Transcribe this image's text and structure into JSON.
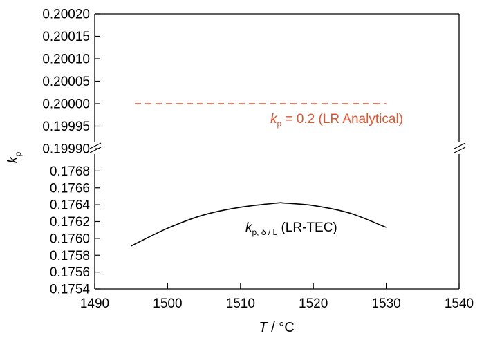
{
  "chart_data": {
    "type": "line",
    "broken_axis": true,
    "xlabel": {
      "italic": "T",
      "rest": " / °C"
    },
    "ylabel": {
      "italic": "k",
      "sub": "p"
    },
    "xlim": [
      1490,
      1540
    ],
    "x_ticks": [
      "1490",
      "1500",
      "1510",
      "1520",
      "1530",
      "1540"
    ],
    "upper_panel": {
      "ylim": [
        0.1999,
        0.2002
      ],
      "y_ticks": [
        "0.20020",
        "0.20015",
        "0.20010",
        "0.20005",
        "0.20000",
        "0.19995",
        "0.19990"
      ]
    },
    "lower_panel": {
      "ylim": [
        0.1754,
        0.177
      ],
      "y_ticks": [
        "0.1768",
        "0.1766",
        "0.1764",
        "0.1762",
        "0.1760",
        "0.1758",
        "0.1756",
        "0.1754"
      ]
    },
    "series": [
      {
        "name": "LR Analytical",
        "panel": "upper",
        "style": "dashed",
        "color": "#e8532d",
        "x": [
          1495.5,
          1530
        ],
        "y": [
          0.2,
          0.2
        ],
        "label": {
          "italic": "k",
          "sub": "p",
          "rest": " = 0.2 (LR Analytical)"
        }
      },
      {
        "name": "LR-TEC",
        "panel": "lower",
        "style": "solid",
        "color": "#000000",
        "x": [
          1495,
          1500,
          1505,
          1510,
          1515,
          1516,
          1520,
          1525,
          1530
        ],
        "y": [
          0.17591,
          0.17612,
          0.17628,
          0.17637,
          0.17642,
          0.17642,
          0.17639,
          0.1763,
          0.17613
        ],
        "label": {
          "italic": "k",
          "sub": "p, δ / L",
          "rest": " (LR-TEC)"
        }
      }
    ]
  }
}
